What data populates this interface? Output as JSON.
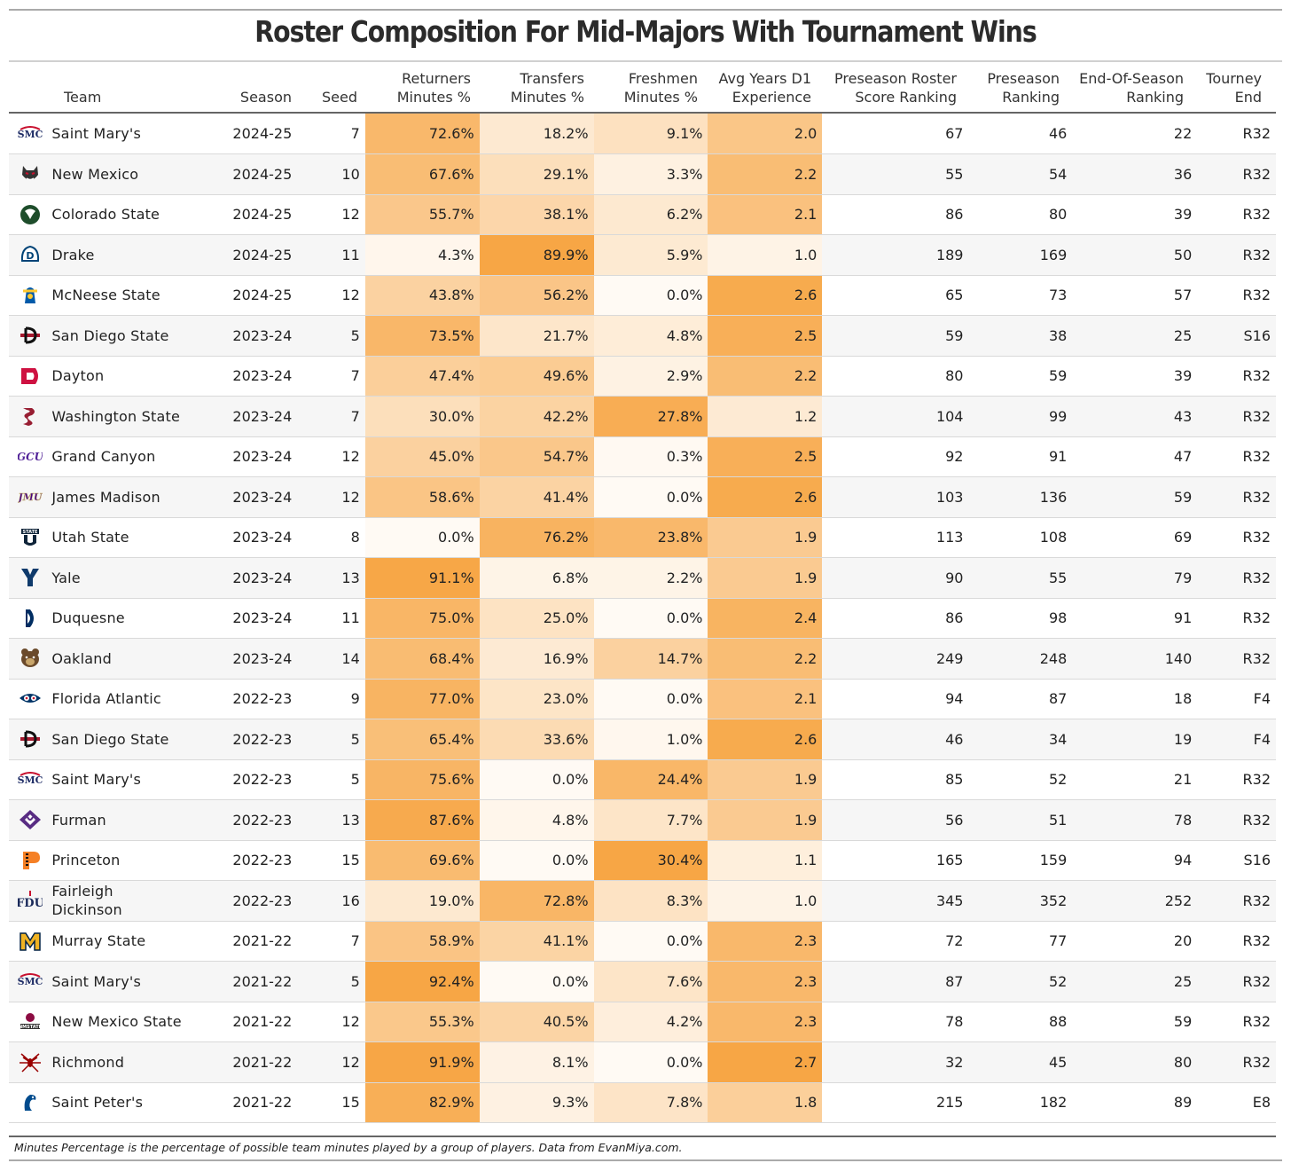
{
  "title": "Roster Composition For Mid-Majors With Tournament Wins",
  "footnote": "Minutes Percentage is the percentage of possible team minutes played by a group of players. Data from EvanMiya.com.",
  "colors": {
    "scale_low": "#fffaf4",
    "scale_high": "#f7a645"
  },
  "chart_data": {
    "type": "table",
    "title": "Roster Composition For Mid-Majors With Tournament Wins",
    "columns": [
      {
        "key": "team",
        "label": "Team"
      },
      {
        "key": "season",
        "label": "Season"
      },
      {
        "key": "seed",
        "label": "Seed"
      },
      {
        "key": "ret",
        "label": "Returners\nMinutes %"
      },
      {
        "key": "trans",
        "label": "Transfers\nMinutes %"
      },
      {
        "key": "fresh",
        "label": "Freshmen\nMinutes %"
      },
      {
        "key": "exp",
        "label": "Avg Years D1\nExperience"
      },
      {
        "key": "prs",
        "label": "Preseason Roster\nScore Ranking"
      },
      {
        "key": "pre",
        "label": "Preseason\nRanking"
      },
      {
        "key": "eos",
        "label": "End-Of-Season\nRanking"
      },
      {
        "key": "end",
        "label": "Tourney\nEnd"
      }
    ],
    "rows": [
      {
        "logo": "smc-logo-icon",
        "team": "Saint Mary's",
        "season": "2024-25",
        "seed": 7,
        "ret": "72.6%",
        "trans": "18.2%",
        "fresh": "9.1%",
        "exp": "2.0",
        "prs": 67,
        "pre": 46,
        "eos": 22,
        "end": "R32"
      },
      {
        "logo": "lobo-logo-icon",
        "team": "New Mexico",
        "season": "2024-25",
        "seed": 10,
        "ret": "67.6%",
        "trans": "29.1%",
        "fresh": "3.3%",
        "exp": "2.2",
        "prs": 55,
        "pre": 54,
        "eos": 36,
        "end": "R32"
      },
      {
        "logo": "ram-logo-icon",
        "team": "Colorado State",
        "season": "2024-25",
        "seed": 12,
        "ret": "55.7%",
        "trans": "38.1%",
        "fresh": "6.2%",
        "exp": "2.1",
        "prs": 86,
        "pre": 80,
        "eos": 39,
        "end": "R32"
      },
      {
        "logo": "bulldog-logo-icon",
        "team": "Drake",
        "season": "2024-25",
        "seed": 11,
        "ret": "4.3%",
        "trans": "89.9%",
        "fresh": "5.9%",
        "exp": "1.0",
        "prs": 189,
        "pre": 169,
        "eos": 50,
        "end": "R32"
      },
      {
        "logo": "cowboy-logo-icon",
        "team": "McNeese State",
        "season": "2024-25",
        "seed": 12,
        "ret": "43.8%",
        "trans": "56.2%",
        "fresh": "0.0%",
        "exp": "2.6",
        "prs": 65,
        "pre": 73,
        "eos": 57,
        "end": "R32"
      },
      {
        "logo": "sdsu-logo-icon",
        "team": "San Diego State",
        "season": "2023-24",
        "seed": 5,
        "ret": "73.5%",
        "trans": "21.7%",
        "fresh": "4.8%",
        "exp": "2.5",
        "prs": 59,
        "pre": 38,
        "eos": 25,
        "end": "S16"
      },
      {
        "logo": "dayton-logo-icon",
        "team": "Dayton",
        "season": "2023-24",
        "seed": 7,
        "ret": "47.4%",
        "trans": "49.6%",
        "fresh": "2.9%",
        "exp": "2.2",
        "prs": 80,
        "pre": 59,
        "eos": 39,
        "end": "R32"
      },
      {
        "logo": "cougar-logo-icon",
        "team": "Washington State",
        "season": "2023-24",
        "seed": 7,
        "ret": "30.0%",
        "trans": "42.2%",
        "fresh": "27.8%",
        "exp": "1.2",
        "prs": 104,
        "pre": 99,
        "eos": 43,
        "end": "R32"
      },
      {
        "logo": "gcu-logo-icon",
        "team": "Grand Canyon",
        "season": "2023-24",
        "seed": 12,
        "ret": "45.0%",
        "trans": "54.7%",
        "fresh": "0.3%",
        "exp": "2.5",
        "prs": 92,
        "pre": 91,
        "eos": 47,
        "end": "R32"
      },
      {
        "logo": "jmu-logo-icon",
        "team": "James Madison",
        "season": "2023-24",
        "seed": 12,
        "ret": "58.6%",
        "trans": "41.4%",
        "fresh": "0.0%",
        "exp": "2.6",
        "prs": 103,
        "pre": 136,
        "eos": 59,
        "end": "R32"
      },
      {
        "logo": "usu-logo-icon",
        "team": "Utah State",
        "season": "2023-24",
        "seed": 8,
        "ret": "0.0%",
        "trans": "76.2%",
        "fresh": "23.8%",
        "exp": "1.9",
        "prs": 113,
        "pre": 108,
        "eos": 69,
        "end": "R32"
      },
      {
        "logo": "yale-logo-icon",
        "team": "Yale",
        "season": "2023-24",
        "seed": 13,
        "ret": "91.1%",
        "trans": "6.8%",
        "fresh": "2.2%",
        "exp": "1.9",
        "prs": 90,
        "pre": 55,
        "eos": 79,
        "end": "R32"
      },
      {
        "logo": "duquesne-logo-icon",
        "team": "Duquesne",
        "season": "2023-24",
        "seed": 11,
        "ret": "75.0%",
        "trans": "25.0%",
        "fresh": "0.0%",
        "exp": "2.4",
        "prs": 86,
        "pre": 98,
        "eos": 91,
        "end": "R32"
      },
      {
        "logo": "grizzly-logo-icon",
        "team": "Oakland",
        "season": "2023-24",
        "seed": 14,
        "ret": "68.4%",
        "trans": "16.9%",
        "fresh": "14.7%",
        "exp": "2.2",
        "prs": 249,
        "pre": 248,
        "eos": 140,
        "end": "R32"
      },
      {
        "logo": "owl-logo-icon",
        "team": "Florida Atlantic",
        "season": "2022-23",
        "seed": 9,
        "ret": "77.0%",
        "trans": "23.0%",
        "fresh": "0.0%",
        "exp": "2.1",
        "prs": 94,
        "pre": 87,
        "eos": 18,
        "end": "F4"
      },
      {
        "logo": "sdsu-logo-icon",
        "team": "San Diego State",
        "season": "2022-23",
        "seed": 5,
        "ret": "65.4%",
        "trans": "33.6%",
        "fresh": "1.0%",
        "exp": "2.6",
        "prs": 46,
        "pre": 34,
        "eos": 19,
        "end": "F4"
      },
      {
        "logo": "smc-logo-icon",
        "team": "Saint Mary's",
        "season": "2022-23",
        "seed": 5,
        "ret": "75.6%",
        "trans": "0.0%",
        "fresh": "24.4%",
        "exp": "1.9",
        "prs": 85,
        "pre": 52,
        "eos": 21,
        "end": "R32"
      },
      {
        "logo": "furman-logo-icon",
        "team": "Furman",
        "season": "2022-23",
        "seed": 13,
        "ret": "87.6%",
        "trans": "4.8%",
        "fresh": "7.7%",
        "exp": "1.9",
        "prs": 56,
        "pre": 51,
        "eos": 78,
        "end": "R32"
      },
      {
        "logo": "princeton-logo-icon",
        "team": "Princeton",
        "season": "2022-23",
        "seed": 15,
        "ret": "69.6%",
        "trans": "0.0%",
        "fresh": "30.4%",
        "exp": "1.1",
        "prs": 165,
        "pre": 159,
        "eos": 94,
        "end": "S16"
      },
      {
        "logo": "fdu-logo-icon",
        "team": "Fairleigh Dickinson",
        "season": "2022-23",
        "seed": 16,
        "ret": "19.0%",
        "trans": "72.8%",
        "fresh": "8.3%",
        "exp": "1.0",
        "prs": 345,
        "pre": 352,
        "eos": 252,
        "end": "R32"
      },
      {
        "logo": "murray-logo-icon",
        "team": "Murray State",
        "season": "2021-22",
        "seed": 7,
        "ret": "58.9%",
        "trans": "41.1%",
        "fresh": "0.0%",
        "exp": "2.3",
        "prs": 72,
        "pre": 77,
        "eos": 20,
        "end": "R32"
      },
      {
        "logo": "smc-logo-icon",
        "team": "Saint Mary's",
        "season": "2021-22",
        "seed": 5,
        "ret": "92.4%",
        "trans": "0.0%",
        "fresh": "7.6%",
        "exp": "2.3",
        "prs": 87,
        "pre": 52,
        "eos": 25,
        "end": "R32"
      },
      {
        "logo": "nmsu-logo-icon",
        "team": "New Mexico State",
        "season": "2021-22",
        "seed": 12,
        "ret": "55.3%",
        "trans": "40.5%",
        "fresh": "4.2%",
        "exp": "2.3",
        "prs": 78,
        "pre": 88,
        "eos": 59,
        "end": "R32"
      },
      {
        "logo": "spider-logo-icon",
        "team": "Richmond",
        "season": "2021-22",
        "seed": 12,
        "ret": "91.9%",
        "trans": "8.1%",
        "fresh": "0.0%",
        "exp": "2.7",
        "prs": 32,
        "pre": 45,
        "eos": 80,
        "end": "R32"
      },
      {
        "logo": "peacock-logo-icon",
        "team": "Saint Peter's",
        "season": "2021-22",
        "seed": 15,
        "ret": "82.9%",
        "trans": "9.3%",
        "fresh": "7.8%",
        "exp": "1.8",
        "prs": 215,
        "pre": 182,
        "eos": 89,
        "end": "E8"
      }
    ]
  }
}
